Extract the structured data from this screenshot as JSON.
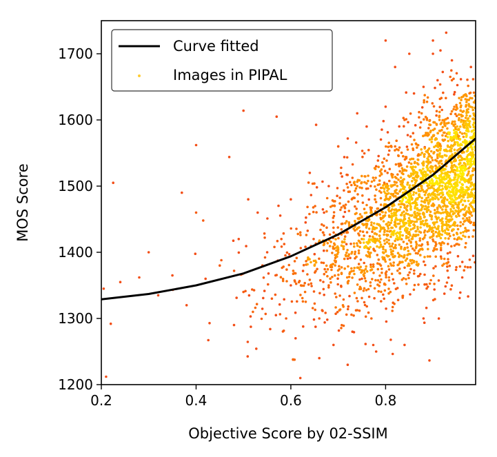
{
  "chart_data": {
    "type": "scatter",
    "xlabel": "Objective Score by 02-SSIM",
    "ylabel": "MOS Score",
    "xlim": [
      0.2,
      0.99
    ],
    "ylim": [
      1200,
      1750
    ],
    "x_ticks": [
      "0.2",
      "0.4",
      "0.6",
      "0.8"
    ],
    "x_tick_values": [
      0.2,
      0.4,
      0.6,
      0.8
    ],
    "y_ticks": [
      "1200",
      "1300",
      "1400",
      "1500",
      "1600",
      "1700"
    ],
    "y_tick_values": [
      1200,
      1300,
      1400,
      1500,
      1600,
      1700
    ],
    "grid": false,
    "legend_position": "top-left",
    "legend": [
      {
        "label": "Curve fitted",
        "kind": "line",
        "color": "#000000"
      },
      {
        "label": "Images in PIPAL",
        "kind": "marker",
        "color": "#ffcc33"
      }
    ],
    "series": [
      {
        "name": "Curve fitted",
        "kind": "line",
        "color": "#000000",
        "x": [
          0.2,
          0.3,
          0.4,
          0.5,
          0.6,
          0.7,
          0.8,
          0.9,
          0.99
        ],
        "y": [
          1329,
          1337,
          1350,
          1368,
          1394,
          1427,
          1468,
          1517,
          1572
        ]
      },
      {
        "name": "Images in PIPAL",
        "kind": "scatter",
        "color_low_density": "#ee3322",
        "color_mid_density": "#ff8800",
        "color_high_density": "#ffee00",
        "x": [
          0.205,
          0.21,
          0.22,
          0.225,
          0.24,
          0.28,
          0.3,
          0.32,
          0.35,
          0.37,
          0.38,
          0.4,
          0.4,
          0.42,
          0.45,
          0.47,
          0.48,
          0.49,
          0.5,
          0.5,
          0.51,
          0.52,
          0.53,
          0.54,
          0.55,
          0.56,
          0.57,
          0.58,
          0.59,
          0.6,
          0.6,
          0.61,
          0.62,
          0.63,
          0.64,
          0.65,
          0.66,
          0.67,
          0.68,
          0.69,
          0.7,
          0.7,
          0.71,
          0.72,
          0.73,
          0.74,
          0.75,
          0.76,
          0.77,
          0.78,
          0.79,
          0.8,
          0.8,
          0.81,
          0.82,
          0.83,
          0.84,
          0.85,
          0.86,
          0.87,
          0.88,
          0.89,
          0.9,
          0.9,
          0.91,
          0.92,
          0.93,
          0.94,
          0.95,
          0.96,
          0.97,
          0.98,
          0.62,
          0.66,
          0.72,
          0.78,
          0.84,
          0.88,
          0.92,
          0.96,
          0.7,
          0.74,
          0.68,
          0.76,
          0.82,
          0.86,
          0.9,
          0.94,
          0.8,
          0.85
        ],
        "y": [
          1345,
          1212,
          1292,
          1505,
          1355,
          1362,
          1400,
          1335,
          1365,
          1490,
          1320,
          1562,
          1460,
          1360,
          1380,
          1544,
          1290,
          1420,
          1614,
          1340,
          1480,
          1310,
          1460,
          1380,
          1400,
          1330,
          1605,
          1420,
          1300,
          1350,
          1480,
          1270,
          1430,
          1340,
          1520,
          1380,
          1300,
          1460,
          1350,
          1260,
          1400,
          1560,
          1320,
          1430,
          1280,
          1500,
          1360,
          1440,
          1300,
          1530,
          1380,
          1620,
          1460,
          1340,
          1560,
          1420,
          1600,
          1380,
          1500,
          1450,
          1650,
          1540,
          1480,
          1700,
          1580,
          1440,
          1520,
          1660,
          1500,
          1600,
          1460,
          1560,
          1210,
          1240,
          1230,
          1250,
          1260,
          1300,
          1380,
          1420,
          1560,
          1610,
          1500,
          1590,
          1680,
          1640,
          1720,
          1690,
          1720,
          1700
        ]
      }
    ]
  }
}
